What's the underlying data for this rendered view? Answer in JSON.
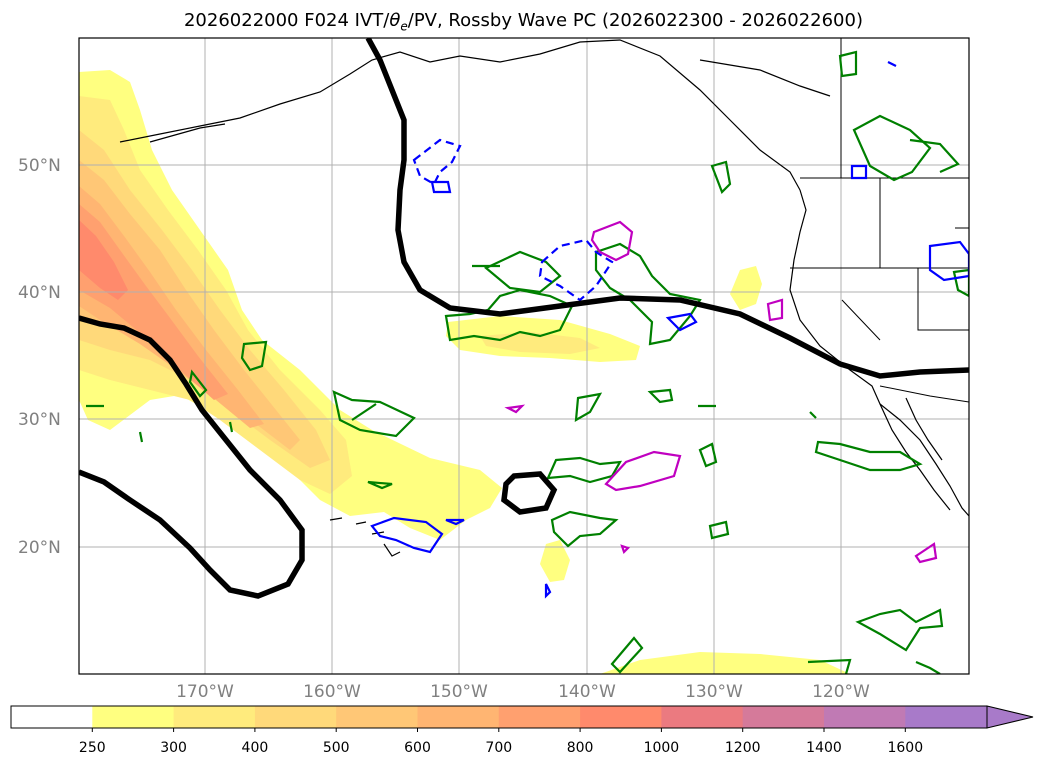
{
  "title_prefix": "2026022000 F024 IVT/",
  "title_theta": "θ",
  "title_theta_sub": "e",
  "title_suffix": "/PV, Rossby Wave PC (2026022300 - 2026022600)",
  "lat_labels": [
    "50°N",
    "40°N",
    "30°N",
    "20°N"
  ],
  "lon_labels": [
    "170°W",
    "160°W",
    "150°W",
    "140°W",
    "130°W",
    "120°W"
  ],
  "colorbar": {
    "ticks": [
      "250",
      "300",
      "400",
      "500",
      "600",
      "700",
      "800",
      "1000",
      "1200",
      "1400",
      "1600"
    ],
    "colors": [
      "#ffffff",
      "#ffff80",
      "#ffeb7d",
      "#ffd97a",
      "#ffc776",
      "#ffb572",
      "#ffa06f",
      "#ff8a6c",
      "#eb7a80",
      "#d57a9a",
      "#c07ab4",
      "#a87ac9"
    ],
    "extend": "max"
  },
  "colors": {
    "ivt_fill": [
      "#ffff80",
      "#ffeb7d",
      "#ffd97a",
      "#ffc776",
      "#ffb572",
      "#ffa06f",
      "#ff8a6c"
    ],
    "rossby_wave_line": "#000000",
    "green_contour": "#008000",
    "blue_contour": "#0000ff",
    "magenta_contour": "#c000c0",
    "coastline": "#000000",
    "grid": "#b0b0b0"
  }
}
